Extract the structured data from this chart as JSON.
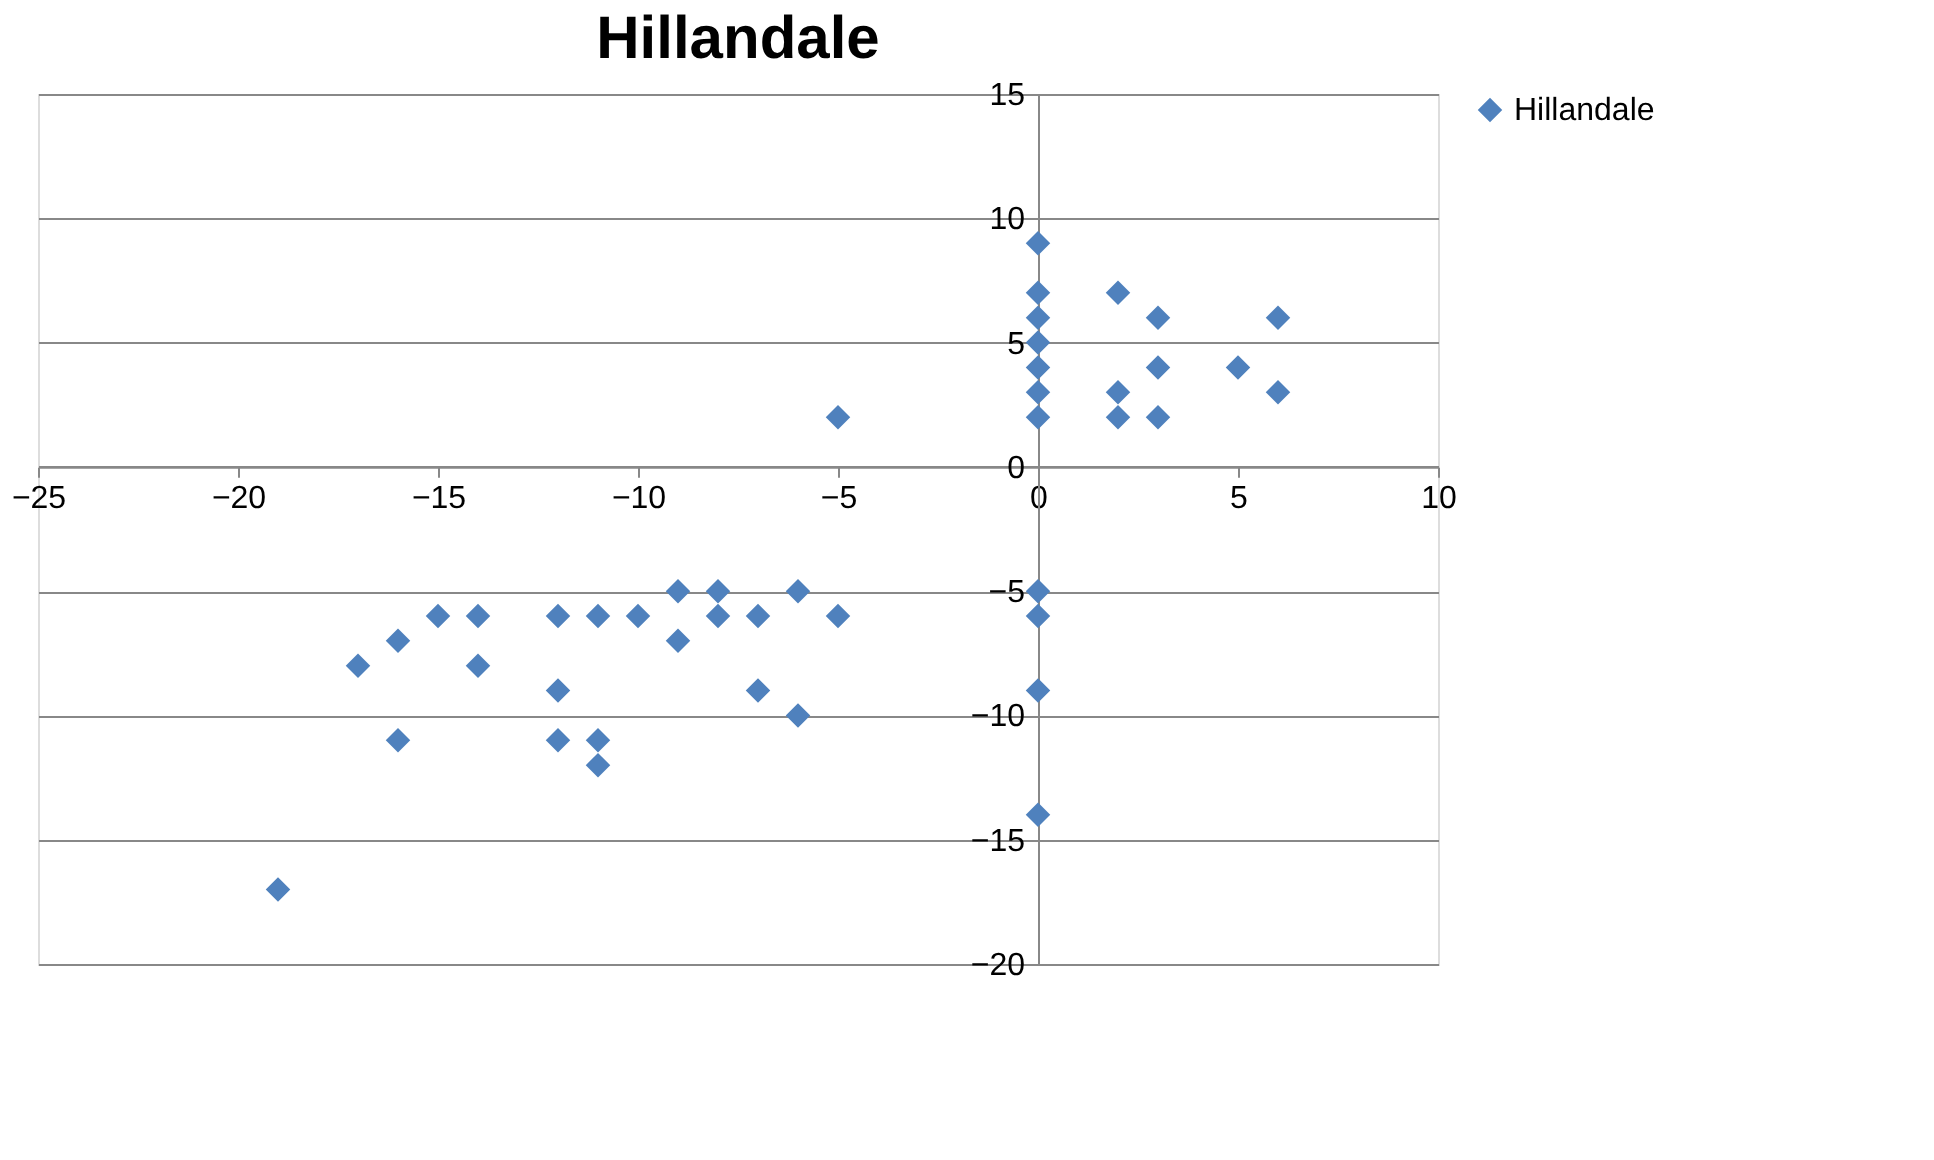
{
  "chart_data": {
    "type": "scatter",
    "title": "Hillandale",
    "xlim": [
      -25,
      10
    ],
    "xticks": [
      -25,
      -20,
      -15,
      -10,
      -5,
      0,
      5,
      10
    ],
    "ylim": [
      -20,
      15
    ],
    "yticks": [
      -20,
      -15,
      -10,
      -5,
      0,
      5,
      10,
      15
    ],
    "grid": "y",
    "legend": "right",
    "marker": "diamond",
    "series": [
      {
        "name": "Hillandale",
        "color": "#4f81bd",
        "x": [
          0,
          0,
          0,
          0,
          0,
          0,
          0,
          2,
          3,
          2,
          2,
          3,
          3,
          5,
          6,
          6,
          -5,
          0,
          0,
          0,
          0,
          -19,
          -17,
          -16,
          -16,
          -15,
          -14,
          -14,
          -12,
          -12,
          -12,
          -11,
          -11,
          -11,
          -10,
          -9,
          -9,
          -8,
          -8,
          -7,
          -7,
          -6,
          -6,
          -5
        ],
        "values": [
          9,
          7,
          6,
          5,
          4,
          3,
          2,
          7,
          6,
          3,
          2,
          4,
          2,
          4,
          6,
          3,
          2,
          -5,
          -6,
          -9,
          -14,
          -17,
          -8,
          -7,
          -11,
          -6,
          -6,
          -8,
          -6,
          -9,
          -11,
          -6,
          -11,
          -12,
          -6,
          -5,
          -7,
          -5,
          -6,
          -6,
          -9,
          -5,
          -10,
          -6
        ]
      }
    ]
  }
}
